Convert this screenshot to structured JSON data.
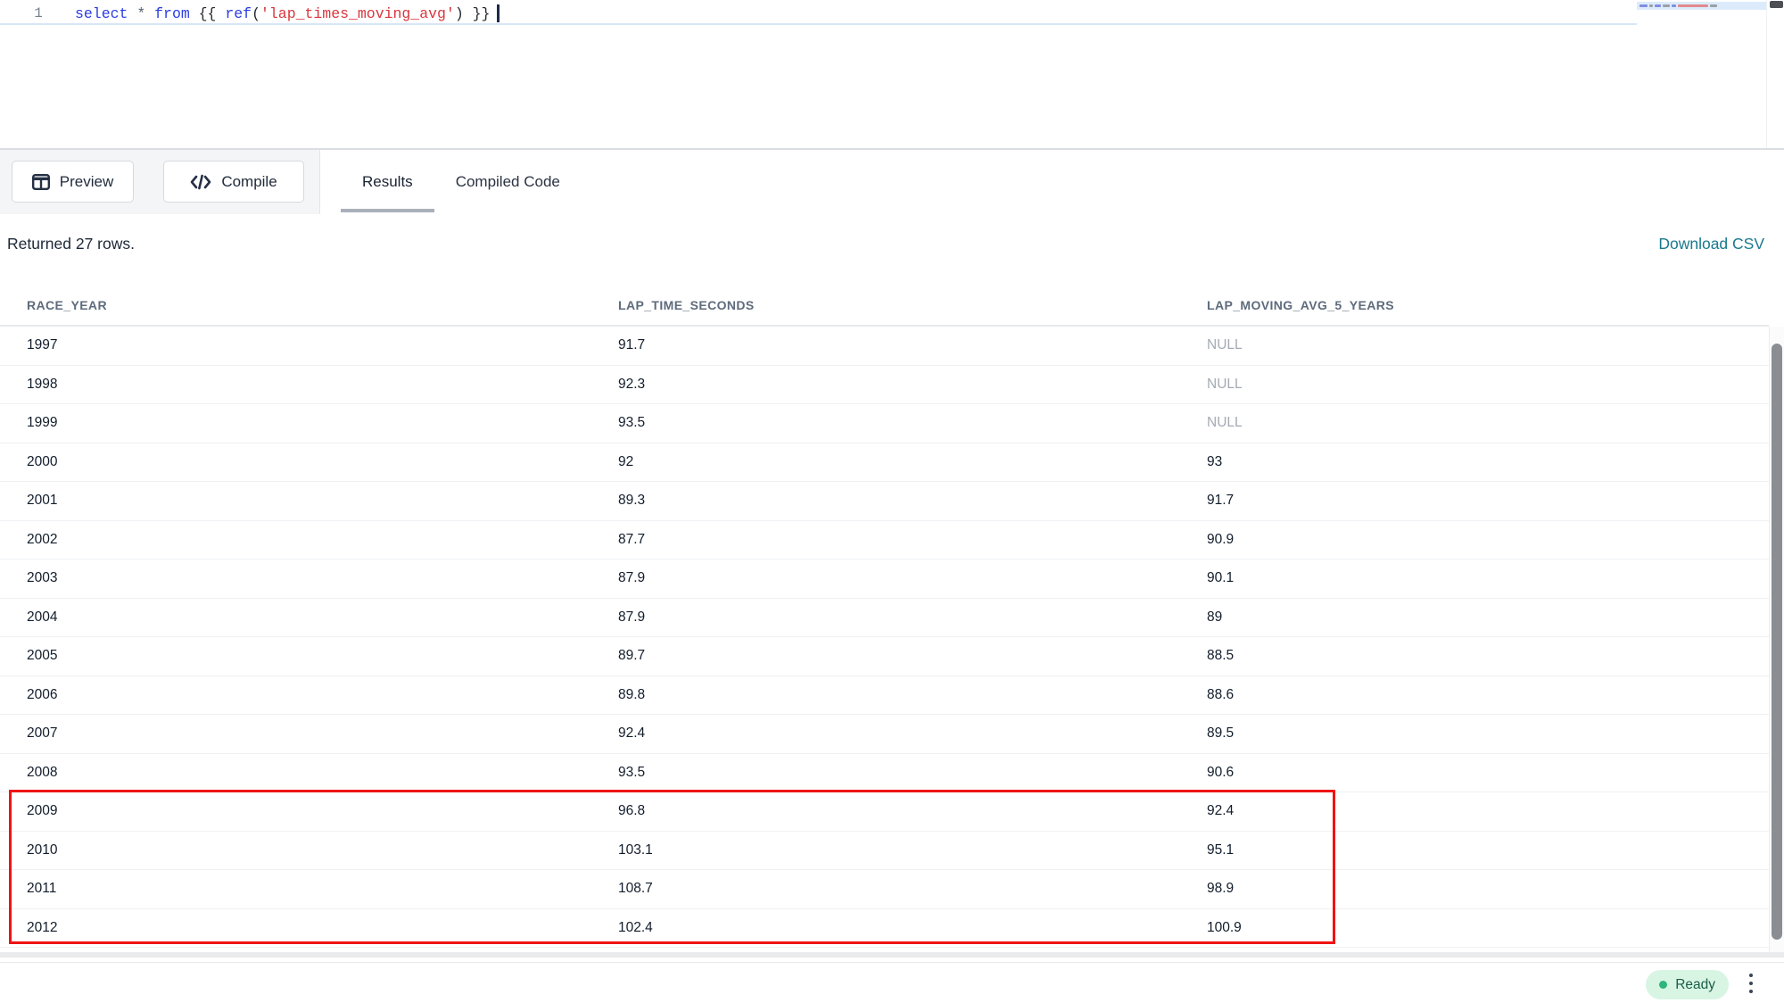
{
  "app": {
    "accent_teal": "#18798e",
    "highlight_red": "#ef1313",
    "ready_green": "#2eb67d"
  },
  "editor": {
    "line_number": "1",
    "tokens": [
      {
        "t": "select",
        "c": "kw"
      },
      {
        "t": " ",
        "c": "pl"
      },
      {
        "t": "*",
        "c": "op"
      },
      {
        "t": " ",
        "c": "pl"
      },
      {
        "t": "from",
        "c": "kw"
      },
      {
        "t": " {{ ",
        "c": "pl"
      },
      {
        "t": "ref",
        "c": "kw"
      },
      {
        "t": "(",
        "c": "pl"
      },
      {
        "t": "'lap_times_moving_avg'",
        "c": "str"
      },
      {
        "t": ")",
        "c": "pl"
      },
      {
        "t": " }}",
        "c": "pl"
      }
    ]
  },
  "toolbar": {
    "preview_label": "Preview",
    "compile_label": "Compile",
    "preview_icon": "table-grid-icon",
    "compile_icon": "code-brackets-icon",
    "tabs": [
      {
        "label": "Results",
        "active": true
      },
      {
        "label": "Compiled Code",
        "active": false
      }
    ]
  },
  "results": {
    "summary": "Returned 27 rows.",
    "download_label": "Download CSV",
    "columns": [
      "RACE_YEAR",
      "LAP_TIME_SECONDS",
      "LAP_MOVING_AVG_5_YEARS"
    ],
    "null_display": "NULL",
    "rows": [
      [
        "1997",
        "91.7",
        "NULL"
      ],
      [
        "1998",
        "92.3",
        "NULL"
      ],
      [
        "1999",
        "93.5",
        "NULL"
      ],
      [
        "2000",
        "92",
        "93"
      ],
      [
        "2001",
        "89.3",
        "91.7"
      ],
      [
        "2002",
        "87.7",
        "90.9"
      ],
      [
        "2003",
        "87.9",
        "90.1"
      ],
      [
        "2004",
        "87.9",
        "89"
      ],
      [
        "2005",
        "89.7",
        "88.5"
      ],
      [
        "2006",
        "89.8",
        "88.6"
      ],
      [
        "2007",
        "92.4",
        "89.5"
      ],
      [
        "2008",
        "93.5",
        "90.6"
      ],
      [
        "2009",
        "96.8",
        "92.4"
      ],
      [
        "2010",
        "103.1",
        "95.1"
      ],
      [
        "2011",
        "108.7",
        "98.9"
      ],
      [
        "2012",
        "102.4",
        "100.9"
      ]
    ],
    "highlighted_year_range": [
      "2009",
      "2012"
    ]
  },
  "status_bar": {
    "ready_label": "Ready",
    "menu_icon": "kebab-menu-icon",
    "status_dot_icon": "green-status-dot"
  }
}
